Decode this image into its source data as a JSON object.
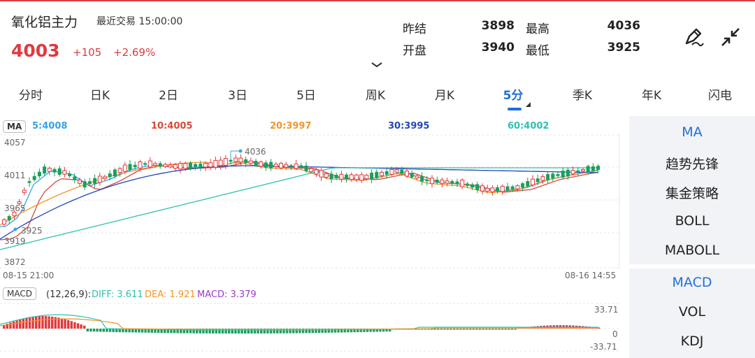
{
  "header": {
    "instrument_name": "氧化铝主力",
    "last_trade_label": "最近交易",
    "last_trade_time": "15:00:00",
    "price": "4003",
    "change": "+105",
    "change_pct": "+2.69%",
    "stats": {
      "prev_settle_label": "昨结",
      "prev_settle": "3898",
      "high_label": "最高",
      "high": "4036",
      "open_label": "开盘",
      "open": "3940",
      "low_label": "最低",
      "low": "3925"
    },
    "draw_icon": "pen-draw-icon",
    "expand_icon": "fullscreen-icon"
  },
  "tabs": [
    {
      "label": "分时"
    },
    {
      "label": "日K"
    },
    {
      "label": "2日"
    },
    {
      "label": "3日"
    },
    {
      "label": "5日"
    },
    {
      "label": "周K"
    },
    {
      "label": "月K"
    },
    {
      "label": "5分",
      "active": true
    },
    {
      "label": "季K"
    },
    {
      "label": "年K"
    },
    {
      "label": "闪电"
    }
  ],
  "ma_bar": {
    "tag": "MA",
    "ma5": "5:4008",
    "ma10": "10:4005",
    "ma20": "20:3997",
    "ma30": "30:3995",
    "ma60": "60:4002"
  },
  "main_chart": {
    "y_labels": [
      "4057",
      "4011",
      "3965",
      "3919",
      "3872"
    ],
    "start_time": "08-15 21:00",
    "end_time": "08-16 14:55",
    "high_marker": "4036",
    "low_marker": "3925"
  },
  "macd_bar": {
    "tag": "MACD",
    "params": "(12,26,9):",
    "diff": "DIFF: 3.611",
    "dea": "DEA: 1.921",
    "macd": "MACD: 3.379",
    "y_top": "33.71",
    "y_mid": "0",
    "y_bottom": "-33.71"
  },
  "side_panel": {
    "main_indicators": [
      {
        "label": "MA",
        "active": true
      },
      {
        "label": "趋势先锋"
      },
      {
        "label": "集金策略"
      },
      {
        "label": "BOLL"
      },
      {
        "label": "MABOLL"
      }
    ],
    "sub_indicators": [
      {
        "label": "MACD",
        "active": true
      },
      {
        "label": "VOL"
      },
      {
        "label": "KDJ"
      }
    ]
  },
  "colors": {
    "up": "#e0393e",
    "down": "#17a05d",
    "accent": "#1f6fd6",
    "ma5": "#3aa0e8",
    "ma10": "#d64a3a",
    "ma20": "#f0962a",
    "ma30": "#2346b8",
    "ma60": "#2fc0b0"
  }
}
